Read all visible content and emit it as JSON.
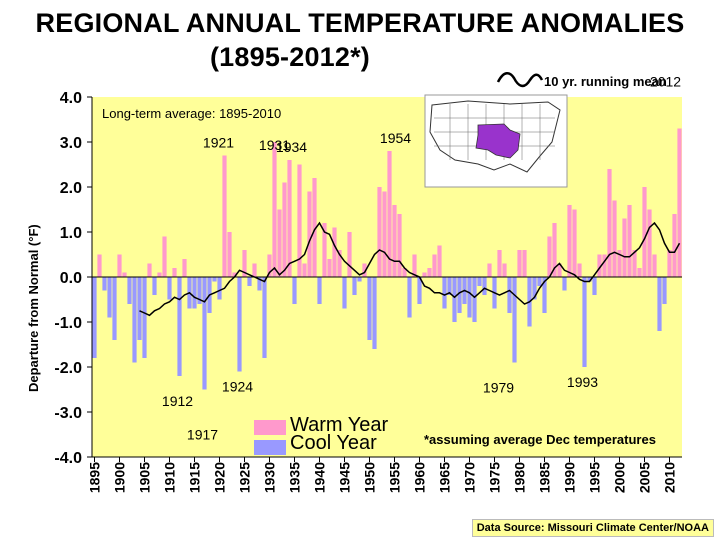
{
  "title_line1": "REGIONAL ANNUAL TEMPERATURE ANOMALIES",
  "title_line2": "(1895-2012*)",
  "running_mean_label": "10 yr. running mean",
  "long_term_label": "Long-term average: 1895-2010",
  "ylabel": "Departure from Normal (°F)",
  "legend": {
    "warm": "Warm Year",
    "cool": "Cool Year"
  },
  "footnote": "*assuming average Dec temperatures",
  "source": "Data Source: Missouri Climate Center/NOAA",
  "colors": {
    "warm": "#ff99cc",
    "cool": "#9999ff",
    "plot_bg": "#ffff99",
    "region": "#9933cc"
  },
  "map_icon": "us-map-region-icon",
  "chart_data": {
    "type": "bar",
    "xlabel": "",
    "ylim": [
      -4.0,
      4.0
    ],
    "yticks": [
      "4.0",
      "3.0",
      "2.0",
      "1.0",
      "0.0",
      "-1.0",
      "-2.0",
      "-3.0",
      "-4.0"
    ],
    "xticks": [
      "1895",
      "1900",
      "1905",
      "1910",
      "1915",
      "1920",
      "1925",
      "1930",
      "1935",
      "1940",
      "1945",
      "1950",
      "1955",
      "1960",
      "1965",
      "1970",
      "1975",
      "1980",
      "1985",
      "1990",
      "1995",
      "2000",
      "2005",
      "2010"
    ],
    "x": [
      1895,
      1896,
      1897,
      1898,
      1899,
      1900,
      1901,
      1902,
      1903,
      1904,
      1905,
      1906,
      1907,
      1908,
      1909,
      1910,
      1911,
      1912,
      1913,
      1914,
      1915,
      1916,
      1917,
      1918,
      1919,
      1920,
      1921,
      1922,
      1923,
      1924,
      1925,
      1926,
      1927,
      1928,
      1929,
      1930,
      1931,
      1932,
      1933,
      1934,
      1935,
      1936,
      1937,
      1938,
      1939,
      1940,
      1941,
      1942,
      1943,
      1944,
      1945,
      1946,
      1947,
      1948,
      1949,
      1950,
      1951,
      1952,
      1953,
      1954,
      1955,
      1956,
      1957,
      1958,
      1959,
      1960,
      1961,
      1962,
      1963,
      1964,
      1965,
      1966,
      1967,
      1968,
      1969,
      1970,
      1971,
      1972,
      1973,
      1974,
      1975,
      1976,
      1977,
      1978,
      1979,
      1980,
      1981,
      1982,
      1983,
      1984,
      1985,
      1986,
      1987,
      1988,
      1989,
      1990,
      1991,
      1992,
      1993,
      1994,
      1995,
      1996,
      1997,
      1998,
      1999,
      2000,
      2001,
      2002,
      2003,
      2004,
      2005,
      2006,
      2007,
      2008,
      2009,
      2010,
      2011,
      2012
    ],
    "values": [
      -1.8,
      0.5,
      -0.3,
      -0.9,
      -1.4,
      0.5,
      0.1,
      -0.6,
      -1.9,
      -1.4,
      -1.8,
      0.3,
      -0.4,
      0.1,
      0.9,
      -0.5,
      0.2,
      -2.2,
      0.4,
      -0.7,
      -0.7,
      -0.6,
      -2.5,
      -0.8,
      -0.1,
      -0.5,
      2.7,
      1.0,
      0.1,
      -2.1,
      0.6,
      -0.2,
      0.3,
      -0.3,
      -1.8,
      0.5,
      3.0,
      1.5,
      2.1,
      2.6,
      -0.6,
      2.5,
      0.3,
      1.9,
      2.2,
      -0.6,
      1.2,
      0.4,
      1.1,
      0.6,
      -0.7,
      1.0,
      -0.4,
      -0.1,
      0.3,
      -1.4,
      -1.6,
      2.0,
      1.9,
      2.8,
      1.6,
      1.4,
      0.2,
      -0.9,
      0.5,
      -0.6,
      0.1,
      0.2,
      0.5,
      0.7,
      -0.7,
      -0.4,
      -1.0,
      -0.8,
      -0.6,
      -0.9,
      -1.0,
      -0.2,
      -0.4,
      0.3,
      -0.7,
      0.6,
      0.3,
      -0.8,
      -1.9,
      0.6,
      0.6,
      -1.1,
      -0.5,
      -0.2,
      -0.8,
      0.9,
      1.2,
      0.3,
      -0.3,
      1.6,
      1.5,
      0.3,
      -2.0,
      -0.1,
      -0.4,
      0.5,
      0.5,
      2.4,
      1.7,
      0.6,
      1.3,
      1.6,
      0.6,
      0.2,
      2.0,
      1.5,
      0.5,
      -1.2,
      -0.6,
      0.6,
      1.4,
      3.3
    ],
    "running_mean": [
      {
        "x": 1904,
        "y": -0.75
      },
      {
        "x": 1905,
        "y": -0.8
      },
      {
        "x": 1906,
        "y": -0.85
      },
      {
        "x": 1907,
        "y": -0.75
      },
      {
        "x": 1908,
        "y": -0.7
      },
      {
        "x": 1909,
        "y": -0.6
      },
      {
        "x": 1910,
        "y": -0.55
      },
      {
        "x": 1911,
        "y": -0.45
      },
      {
        "x": 1912,
        "y": -0.5
      },
      {
        "x": 1913,
        "y": -0.4
      },
      {
        "x": 1914,
        "y": -0.35
      },
      {
        "x": 1915,
        "y": -0.45
      },
      {
        "x": 1916,
        "y": -0.5
      },
      {
        "x": 1917,
        "y": -0.55
      },
      {
        "x": 1918,
        "y": -0.4
      },
      {
        "x": 1919,
        "y": -0.35
      },
      {
        "x": 1920,
        "y": -0.3
      },
      {
        "x": 1921,
        "y": -0.25
      },
      {
        "x": 1922,
        "y": -0.1
      },
      {
        "x": 1923,
        "y": 0.0
      },
      {
        "x": 1924,
        "y": 0.15
      },
      {
        "x": 1925,
        "y": 0.1
      },
      {
        "x": 1926,
        "y": 0.05
      },
      {
        "x": 1927,
        "y": 0.0
      },
      {
        "x": 1928,
        "y": -0.05
      },
      {
        "x": 1929,
        "y": -0.1
      },
      {
        "x": 1930,
        "y": 0.1
      },
      {
        "x": 1931,
        "y": 0.2
      },
      {
        "x": 1932,
        "y": 0.05
      },
      {
        "x": 1933,
        "y": 0.15
      },
      {
        "x": 1934,
        "y": 0.3
      },
      {
        "x": 1935,
        "y": 0.35
      },
      {
        "x": 1936,
        "y": 0.4
      },
      {
        "x": 1937,
        "y": 0.5
      },
      {
        "x": 1938,
        "y": 0.8
      },
      {
        "x": 1939,
        "y": 1.05
      },
      {
        "x": 1940,
        "y": 1.2
      },
      {
        "x": 1941,
        "y": 1.0
      },
      {
        "x": 1942,
        "y": 0.95
      },
      {
        "x": 1943,
        "y": 0.7
      },
      {
        "x": 1944,
        "y": 0.5
      },
      {
        "x": 1945,
        "y": 0.35
      },
      {
        "x": 1946,
        "y": 0.25
      },
      {
        "x": 1947,
        "y": 0.15
      },
      {
        "x": 1948,
        "y": 0.05
      },
      {
        "x": 1949,
        "y": 0.1
      },
      {
        "x": 1950,
        "y": 0.3
      },
      {
        "x": 1951,
        "y": 0.5
      },
      {
        "x": 1952,
        "y": 0.6
      },
      {
        "x": 1953,
        "y": 0.55
      },
      {
        "x": 1954,
        "y": 0.4
      },
      {
        "x": 1955,
        "y": 0.35
      },
      {
        "x": 1956,
        "y": 0.35
      },
      {
        "x": 1957,
        "y": 0.2
      },
      {
        "x": 1958,
        "y": 0.1
      },
      {
        "x": 1959,
        "y": 0.05
      },
      {
        "x": 1960,
        "y": 0.0
      },
      {
        "x": 1961,
        "y": -0.2
      },
      {
        "x": 1962,
        "y": -0.25
      },
      {
        "x": 1963,
        "y": -0.35
      },
      {
        "x": 1964,
        "y": -0.35
      },
      {
        "x": 1965,
        "y": -0.4
      },
      {
        "x": 1966,
        "y": -0.35
      },
      {
        "x": 1967,
        "y": -0.45
      },
      {
        "x": 1968,
        "y": -0.35
      },
      {
        "x": 1969,
        "y": -0.3
      },
      {
        "x": 1970,
        "y": -0.35
      },
      {
        "x": 1971,
        "y": -0.45
      },
      {
        "x": 1972,
        "y": -0.35
      },
      {
        "x": 1973,
        "y": -0.25
      },
      {
        "x": 1974,
        "y": -0.3
      },
      {
        "x": 1975,
        "y": -0.35
      },
      {
        "x": 1976,
        "y": -0.4
      },
      {
        "x": 1977,
        "y": -0.35
      },
      {
        "x": 1978,
        "y": -0.3
      },
      {
        "x": 1979,
        "y": -0.4
      },
      {
        "x": 1980,
        "y": -0.5
      },
      {
        "x": 1981,
        "y": -0.6
      },
      {
        "x": 1982,
        "y": -0.55
      },
      {
        "x": 1983,
        "y": -0.45
      },
      {
        "x": 1984,
        "y": -0.25
      },
      {
        "x": 1985,
        "y": -0.1
      },
      {
        "x": 1986,
        "y": 0.0
      },
      {
        "x": 1987,
        "y": 0.2
      },
      {
        "x": 1988,
        "y": 0.3
      },
      {
        "x": 1989,
        "y": 0.15
      },
      {
        "x": 1990,
        "y": 0.1
      },
      {
        "x": 1991,
        "y": 0.05
      },
      {
        "x": 1992,
        "y": -0.05
      },
      {
        "x": 1993,
        "y": -0.1
      },
      {
        "x": 1994,
        "y": -0.1
      },
      {
        "x": 1995,
        "y": 0.05
      },
      {
        "x": 1996,
        "y": 0.2
      },
      {
        "x": 1997,
        "y": 0.35
      },
      {
        "x": 1998,
        "y": 0.5
      },
      {
        "x": 1999,
        "y": 0.55
      },
      {
        "x": 2000,
        "y": 0.5
      },
      {
        "x": 2001,
        "y": 0.45
      },
      {
        "x": 2002,
        "y": 0.45
      },
      {
        "x": 2003,
        "y": 0.55
      },
      {
        "x": 2004,
        "y": 0.65
      },
      {
        "x": 2005,
        "y": 0.85
      },
      {
        "x": 2006,
        "y": 1.1
      },
      {
        "x": 2007,
        "y": 1.2
      },
      {
        "x": 2008,
        "y": 1.05
      },
      {
        "x": 2009,
        "y": 0.75
      },
      {
        "x": 2010,
        "y": 0.55
      },
      {
        "x": 2011,
        "y": 0.55
      },
      {
        "x": 2012,
        "y": 0.75
      }
    ],
    "annotations": [
      {
        "label": "1921",
        "x": 1921,
        "y": 2.7
      },
      {
        "label": "1931",
        "x": 1931,
        "y": 3.0
      },
      {
        "label": "1934",
        "x": 1934,
        "y": 2.6
      },
      {
        "label": "1954",
        "x": 1954,
        "y": 2.8
      },
      {
        "label": "2012",
        "x": 2012,
        "y": 3.3
      },
      {
        "label": "1912",
        "x": 1912,
        "y": -2.2
      },
      {
        "label": "1917",
        "x": 1917,
        "y": -2.5
      },
      {
        "label": "1924",
        "x": 1924,
        "y": -2.1
      },
      {
        "label": "1979",
        "x": 1979,
        "y": -1.9
      },
      {
        "label": "1993",
        "x": 1993,
        "y": -2.0
      }
    ]
  }
}
